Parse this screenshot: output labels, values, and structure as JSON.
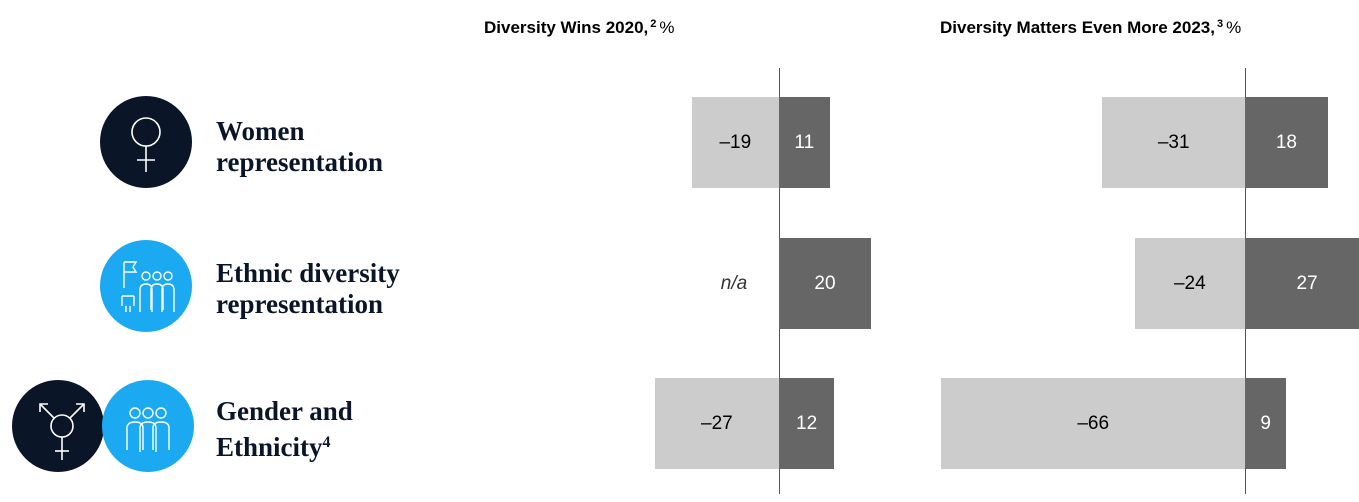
{
  "chart_data": {
    "type": "bar",
    "orientation": "horizontal",
    "categories": [
      {
        "lines": [
          "Women",
          "representation"
        ],
        "sup": "",
        "icon": "female-symbol-icon",
        "circle_color": "#0a1628"
      },
      {
        "lines": [
          "Ethnic diversity",
          "representation"
        ],
        "sup": "",
        "icon": "people-group-icon",
        "circle_color": "#1ba9f2"
      },
      {
        "lines": [
          "Gender and",
          "Ethnicity"
        ],
        "sup": "4",
        "icon": "transgender-symbol-icon",
        "circle_color": "#0a1628"
      }
    ],
    "panels": [
      {
        "title": "Diversity Wins 2020,",
        "title_sup": "2",
        "unit": "%",
        "negative": [
          -19,
          null,
          -27
        ],
        "negative_labels": [
          "–19",
          "n/a",
          "–27"
        ],
        "positive": [
          11,
          20,
          12
        ],
        "positive_labels": [
          "11",
          "20",
          "12"
        ]
      },
      {
        "title": "Diversity Matters Even More 2023,",
        "title_sup": "3",
        "unit": "%",
        "negative": [
          -31,
          -24,
          -66
        ],
        "negative_labels": [
          "–31",
          "–24",
          "–66"
        ],
        "positive": [
          18,
          27,
          9
        ],
        "positive_labels": [
          "18",
          "27",
          "9"
        ]
      }
    ],
    "colors": {
      "negative": "#cccccc",
      "positive": "#666666",
      "dark_circle": "#0a1628",
      "blue_circle": "#1ba9f2"
    }
  }
}
